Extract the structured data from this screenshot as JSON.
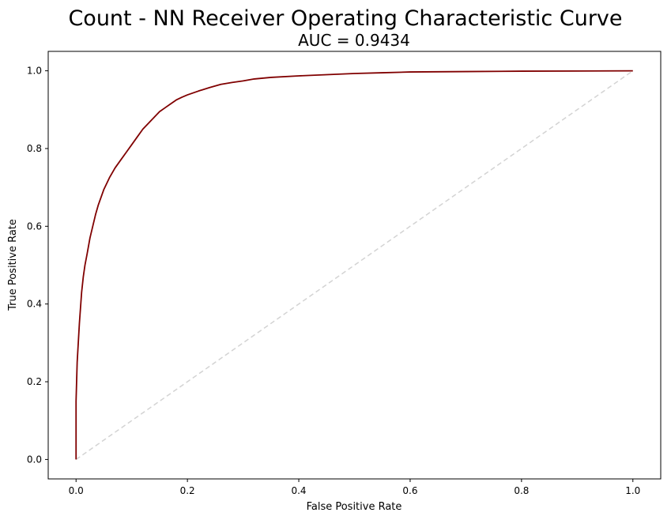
{
  "chart_data": {
    "type": "line",
    "title": "Count - NN Receiver Operating Characteristic Curve",
    "subtitle": "AUC = 0.9434",
    "xlabel": "False Positive Rate",
    "ylabel": "True Positive Rate",
    "xlim": [
      -0.05,
      1.05
    ],
    "ylim": [
      -0.05,
      1.05
    ],
    "xticks": [
      "0.0",
      "0.2",
      "0.4",
      "0.6",
      "0.8",
      "1.0"
    ],
    "yticks": [
      "0.0",
      "0.2",
      "0.4",
      "0.6",
      "0.8",
      "1.0"
    ],
    "grid": false,
    "series": [
      {
        "color": "#800000",
        "style": "solid",
        "x": [
          0.0,
          0.0,
          0.002,
          0.004,
          0.006,
          0.008,
          0.01,
          0.013,
          0.016,
          0.02,
          0.025,
          0.03,
          0.035,
          0.04,
          0.045,
          0.05,
          0.055,
          0.06,
          0.07,
          0.08,
          0.09,
          0.1,
          0.11,
          0.12,
          0.13,
          0.14,
          0.15,
          0.16,
          0.17,
          0.18,
          0.19,
          0.2,
          0.22,
          0.24,
          0.26,
          0.28,
          0.3,
          0.32,
          0.35,
          0.4,
          0.45,
          0.5,
          0.55,
          0.6,
          0.7,
          0.8,
          0.9,
          1.0
        ],
        "y": [
          0.0,
          0.15,
          0.25,
          0.3,
          0.35,
          0.39,
          0.43,
          0.47,
          0.5,
          0.53,
          0.57,
          0.6,
          0.63,
          0.655,
          0.675,
          0.695,
          0.71,
          0.725,
          0.75,
          0.77,
          0.79,
          0.81,
          0.83,
          0.85,
          0.865,
          0.88,
          0.895,
          0.905,
          0.915,
          0.925,
          0.932,
          0.938,
          0.948,
          0.957,
          0.965,
          0.97,
          0.974,
          0.979,
          0.983,
          0.987,
          0.99,
          0.993,
          0.995,
          0.997,
          0.998,
          0.999,
          0.9995,
          1.0
        ]
      },
      {
        "color": "#d3d3d3",
        "style": "dashed",
        "x": [
          0.0,
          1.0
        ],
        "y": [
          0.0,
          1.0
        ]
      }
    ]
  }
}
